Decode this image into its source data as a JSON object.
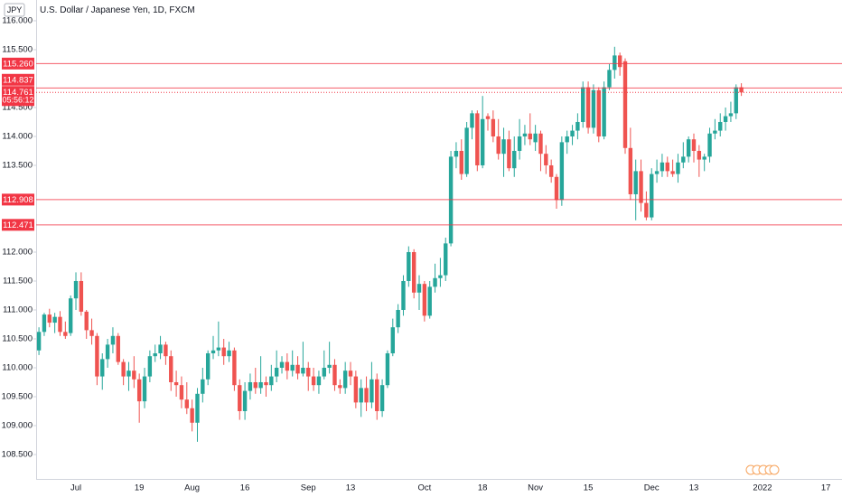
{
  "chart_data": {
    "type": "candlestick",
    "title": "U.S. Dollar / Japanese Yen, 1D, FXCM",
    "symbol": "JPY",
    "up_color": "#26a69a",
    "down_color": "#ef5350",
    "level_color": "#f23645",
    "ylim": [
      108.078,
      116.359
    ],
    "yticks": [
      {
        "value": 108.5,
        "label": "108.500"
      },
      {
        "value": 109,
        "label": "109.000"
      },
      {
        "value": 109.5,
        "label": "109.500"
      },
      {
        "value": 110,
        "label": "110.000"
      },
      {
        "value": 110.5,
        "label": "110.500"
      },
      {
        "value": 111,
        "label": "111.000"
      },
      {
        "value": 111.5,
        "label": "111.500"
      },
      {
        "value": 112,
        "label": "112.000"
      },
      {
        "value": 113.5,
        "label": "113.500"
      },
      {
        "value": 114,
        "label": "114.000"
      },
      {
        "value": 114.5,
        "label": "114.500"
      },
      {
        "value": 115.5,
        "label": "115.500"
      },
      {
        "value": 116,
        "label": "116.000"
      }
    ],
    "price_lines": [
      {
        "value": 115.26,
        "label": "115.260"
      },
      {
        "value": 114.837,
        "label": "114.837"
      },
      {
        "value": 112.908,
        "label": "112.908"
      },
      {
        "value": 112.471,
        "label": "112.471"
      }
    ],
    "current_price": {
      "value": 114.761,
      "label": "114.761",
      "countdown": "05:56:12"
    },
    "categories": [
      null,
      null,
      null,
      null,
      null,
      null,
      null,
      "Jul",
      null,
      null,
      null,
      null,
      null,
      null,
      null,
      null,
      null,
      null,
      null,
      "19",
      null,
      null,
      null,
      null,
      null,
      null,
      null,
      null,
      null,
      "Aug",
      null,
      null,
      null,
      null,
      null,
      null,
      null,
      null,
      null,
      "16",
      null,
      null,
      null,
      null,
      null,
      null,
      null,
      null,
      null,
      null,
      null,
      "Sep",
      null,
      null,
      null,
      null,
      null,
      null,
      null,
      "13",
      null,
      null,
      null,
      null,
      null,
      null,
      null,
      null,
      null,
      null,
      null,
      null,
      null,
      "Oct",
      null,
      null,
      null,
      null,
      null,
      null,
      null,
      null,
      null,
      null,
      "18",
      null,
      null,
      null,
      null,
      null,
      null,
      null,
      null,
      null,
      "Nov",
      null,
      null,
      null,
      null,
      null,
      null,
      null,
      null,
      null,
      "15",
      null,
      null,
      null,
      null,
      null,
      null,
      null,
      null,
      null,
      null,
      null,
      "Dec",
      null,
      null,
      null,
      null,
      null,
      null,
      null,
      "13",
      null,
      null,
      null,
      null,
      null,
      null,
      null,
      null,
      null,
      null,
      null,
      null,
      "2022",
      null,
      null,
      null,
      null,
      null,
      null,
      null,
      null,
      null,
      null,
      null,
      "17"
    ],
    "open": [
      110.3,
      110.62,
      110.92,
      110.78,
      110.88,
      110.62,
      110.6,
      111.2,
      111.5,
      110.97,
      110.65,
      110.55,
      109.85,
      110.15,
      110.4,
      110.55,
      110.1,
      109.85,
      109.95,
      109.8,
      109.42,
      109.85,
      110.2,
      110.25,
      110.4,
      110.2,
      109.75,
      109.7,
      109.45,
      109.3,
      109.05,
      109.55,
      109.8,
      110.25,
      110.3,
      110.35,
      110.2,
      110.3,
      109.7,
      109.25,
      109.6,
      109.75,
      109.65,
      109.75,
      109.7,
      109.85,
      110.0,
      110.1,
      109.95,
      110.05,
      109.9,
      110.0,
      109.85,
      109.7,
      109.85,
      110.0,
      110.05,
      109.7,
      109.65,
      109.95,
      109.85,
      109.4,
      109.65,
      109.4,
      109.8,
      109.25,
      109.7,
      110.25,
      110.7,
      111.0,
      111.5,
      112.0,
      111.3,
      111.45,
      110.9,
      111.4,
      111.55,
      111.6,
      112.15,
      113.65,
      113.75,
      113.35,
      114.15,
      114.4,
      113.5,
      114.35,
      114.3,
      114.0,
      113.7,
      113.95,
      113.45,
      113.75,
      114.0,
      114.05,
      113.9,
      114.05,
      113.7,
      113.5,
      113.3,
      112.9,
      113.9,
      114.0,
      114.1,
      114.25,
      114.85,
      114.15,
      114.8,
      114.0,
      114.85,
      115.15,
      115.4,
      115.3,
      113.8,
      113.0,
      113.4,
      112.85,
      112.6,
      113.35,
      113.4,
      113.55,
      113.4,
      113.35,
      113.55,
      113.65,
      113.95,
      113.75,
      113.6,
      113.65,
      114.05,
      114.1,
      114.25,
      114.35,
      114.4,
      114.85,
      null,
      null,
      null,
      null,
      null,
      null,
      null,
      null,
      null,
      null,
      null,
      null,
      null,
      null,
      null,
      null
    ],
    "high": [
      110.7,
      110.95,
      111.02,
      110.95,
      110.98,
      110.8,
      111.25,
      111.65,
      111.65,
      111.0,
      110.85,
      110.6,
      110.25,
      110.5,
      110.7,
      110.6,
      110.15,
      110.1,
      110.2,
      109.9,
      110.0,
      110.3,
      110.4,
      110.55,
      110.45,
      110.3,
      109.95,
      109.85,
      109.75,
      109.45,
      109.65,
      110.0,
      110.3,
      110.55,
      110.8,
      110.5,
      110.45,
      110.35,
      109.8,
      109.75,
      109.9,
      110.0,
      110.2,
      109.85,
      110.05,
      110.3,
      110.2,
      110.25,
      110.3,
      110.2,
      110.45,
      110.1,
      110.0,
      109.95,
      110.3,
      110.45,
      110.15,
      109.8,
      110.1,
      110.1,
      109.95,
      109.8,
      109.85,
      110.1,
      109.9,
      109.8,
      110.3,
      110.85,
      111.1,
      111.6,
      112.1,
      112.05,
      111.6,
      111.5,
      111.5,
      111.8,
      111.9,
      112.25,
      113.75,
      113.9,
      113.95,
      114.25,
      114.45,
      114.45,
      114.7,
      114.4,
      114.45,
      114.3,
      114.15,
      114.1,
      114.0,
      114.3,
      114.2,
      114.4,
      114.2,
      114.1,
      113.85,
      113.6,
      113.35,
      114.0,
      114.1,
      114.2,
      114.4,
      114.95,
      114.95,
      114.9,
      114.85,
      114.95,
      115.25,
      115.55,
      115.45,
      115.35,
      114.15,
      113.6,
      113.6,
      113.05,
      113.45,
      113.6,
      113.7,
      113.65,
      113.6,
      113.7,
      113.9,
      114.0,
      114.05,
      113.85,
      113.7,
      114.15,
      114.3,
      114.4,
      114.5,
      114.6,
      114.9,
      114.92,
      null,
      null,
      null,
      null,
      null,
      null,
      null,
      null,
      null,
      null,
      null,
      null,
      null,
      null,
      null,
      null
    ],
    "low": [
      110.22,
      110.55,
      110.7,
      110.6,
      110.55,
      110.5,
      110.55,
      111.0,
      110.9,
      110.5,
      110.4,
      109.7,
      109.62,
      110.0,
      110.25,
      110.05,
      109.7,
      109.6,
      109.65,
      109.05,
      109.3,
      109.75,
      110.1,
      110.15,
      110.05,
      109.6,
      109.5,
      109.3,
      109.2,
      108.9,
      108.72,
      109.4,
      109.7,
      110.15,
      110.2,
      110.05,
      110.1,
      109.6,
      109.1,
      109.1,
      109.45,
      109.55,
      109.55,
      109.5,
      109.6,
      109.75,
      109.9,
      109.8,
      109.85,
      109.8,
      109.85,
      109.6,
      109.6,
      109.55,
      109.8,
      109.9,
      109.6,
      109.55,
      109.55,
      109.7,
      109.3,
      109.15,
      109.25,
      109.3,
      109.1,
      109.15,
      109.65,
      110.2,
      110.6,
      110.9,
      111.4,
      111.2,
      111.0,
      110.8,
      110.85,
      111.3,
      111.4,
      111.5,
      112.1,
      113.45,
      113.25,
      113.3,
      113.95,
      113.4,
      113.45,
      114.1,
      113.9,
      113.6,
      113.3,
      113.4,
      113.3,
      113.6,
      113.85,
      113.85,
      113.75,
      113.4,
      113.35,
      113.2,
      112.75,
      112.8,
      113.7,
      113.85,
      113.95,
      114.15,
      114.05,
      114.05,
      113.9,
      113.95,
      114.8,
      115.0,
      115.05,
      113.7,
      112.9,
      112.55,
      112.7,
      112.55,
      112.55,
      113.2,
      113.3,
      113.3,
      113.3,
      113.2,
      113.45,
      113.55,
      113.55,
      113.3,
      113.4,
      113.55,
      113.95,
      114.0,
      114.1,
      114.25,
      114.3,
      114.7,
      null,
      null,
      null,
      null,
      null,
      null,
      null,
      null,
      null,
      null,
      null,
      null,
      null,
      null,
      null,
      null
    ],
    "close": [
      110.62,
      110.92,
      110.78,
      110.88,
      110.62,
      110.55,
      111.2,
      111.5,
      110.97,
      110.65,
      110.55,
      109.85,
      110.15,
      110.4,
      110.55,
      110.1,
      109.85,
      109.95,
      109.8,
      109.42,
      109.85,
      110.2,
      110.25,
      110.4,
      110.2,
      109.75,
      109.7,
      109.45,
      109.3,
      109.05,
      109.55,
      109.8,
      110.25,
      110.3,
      110.35,
      110.2,
      110.3,
      109.7,
      109.25,
      109.6,
      109.75,
      109.65,
      109.75,
      109.7,
      109.85,
      110.0,
      110.1,
      109.95,
      110.05,
      109.9,
      110.0,
      109.85,
      109.7,
      109.85,
      110.0,
      110.05,
      109.7,
      109.65,
      109.95,
      109.85,
      109.4,
      109.65,
      109.4,
      109.8,
      109.25,
      109.7,
      110.25,
      110.7,
      111.0,
      111.5,
      112.0,
      111.3,
      111.45,
      110.9,
      111.4,
      111.55,
      111.6,
      112.15,
      113.65,
      113.75,
      113.35,
      114.15,
      114.4,
      113.5,
      114.3,
      114.3,
      114.0,
      113.7,
      113.95,
      113.45,
      113.75,
      114.0,
      114.05,
      113.95,
      114.05,
      113.7,
      113.5,
      113.3,
      112.9,
      113.9,
      114.0,
      114.1,
      114.25,
      114.85,
      114.15,
      114.8,
      114.0,
      114.85,
      115.15,
      115.4,
      115.2,
      113.8,
      113.0,
      113.4,
      112.85,
      112.6,
      113.35,
      113.4,
      113.55,
      113.4,
      113.35,
      113.55,
      113.65,
      113.95,
      113.75,
      113.6,
      113.65,
      114.05,
      114.1,
      114.25,
      114.35,
      114.4,
      114.85,
      114.761,
      null,
      null,
      null,
      null,
      null,
      null,
      null,
      null,
      null,
      null,
      null,
      null,
      null,
      null,
      null,
      null
    ]
  }
}
